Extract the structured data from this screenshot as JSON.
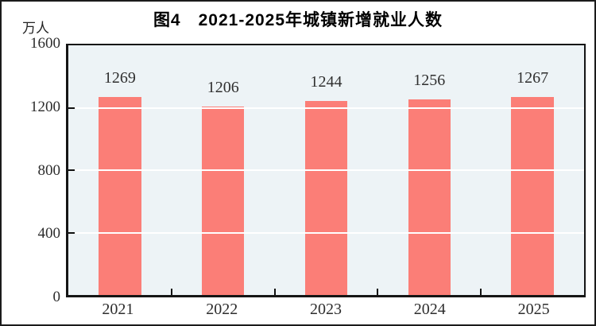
{
  "chart_data": {
    "type": "bar",
    "title": "图4　2021-2025年城镇新增就业人数",
    "unit_label": "万人",
    "categories": [
      "2021",
      "2022",
      "2023",
      "2024",
      "2025"
    ],
    "values": [
      1269,
      1206,
      1244,
      1256,
      1267
    ],
    "xlabel": "",
    "ylabel": "万人",
    "ylim": [
      0,
      1600
    ],
    "yticks": [
      0,
      400,
      800,
      1200,
      1600
    ],
    "grid": true,
    "legend": "none",
    "bar_color": "#fb7e77",
    "plot_bg": "#edf3f6",
    "gridline_color": "#ffffff",
    "axis_color": "#151515",
    "title_color": "#000000",
    "label_color": "#2d2d2d"
  }
}
